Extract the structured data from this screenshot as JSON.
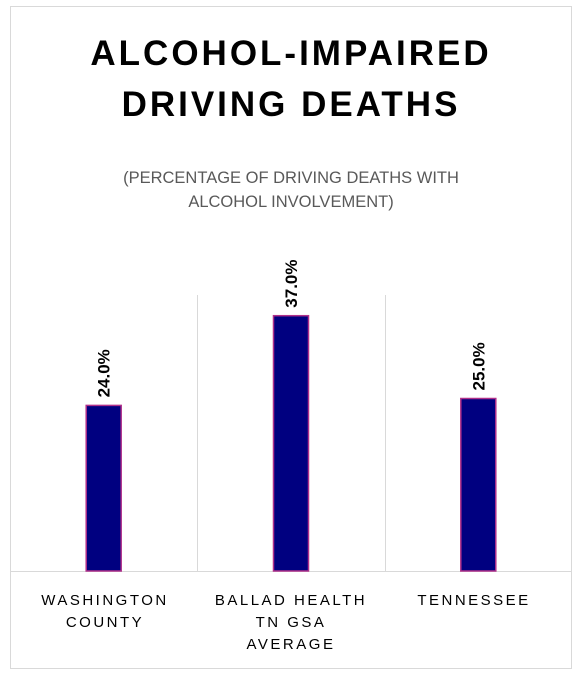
{
  "title_lines": [
    "ALCOHOL-IMPAIRED",
    "DRIVING DEATHS"
  ],
  "subtitle_lines": [
    "(PERCENTAGE OF DRIVING DEATHS WITH",
    "ALCOHOL INVOLVEMENT)"
  ],
  "category_label_lines": [
    [
      "WASHINGTON",
      "COUNTY"
    ],
    [
      "BALLAD HEALTH",
      "TN GSA",
      "AVERAGE"
    ],
    [
      "TENNESSEE"
    ]
  ],
  "colors": {
    "bar_fill": "#000080",
    "bar_outline": "#b0308a",
    "gridline": "#d9d9d9",
    "axis_text": "#000000",
    "subtitle_text": "#595959"
  },
  "chart_data": {
    "type": "bar",
    "categories": [
      "WASHINGTON COUNTY",
      "BALLAD HEALTH TN GSA AVERAGE",
      "TENNESSEE"
    ],
    "values": [
      24.0,
      37.0,
      25.0
    ],
    "data_labels": [
      "24.0%",
      "37.0%",
      "25.0%"
    ],
    "value_unit": "percent",
    "ylim": [
      0,
      40
    ],
    "orientation": "vertical",
    "data_label_rotation": "vertical",
    "gridlines": "vertical category separators",
    "legend": "none"
  }
}
